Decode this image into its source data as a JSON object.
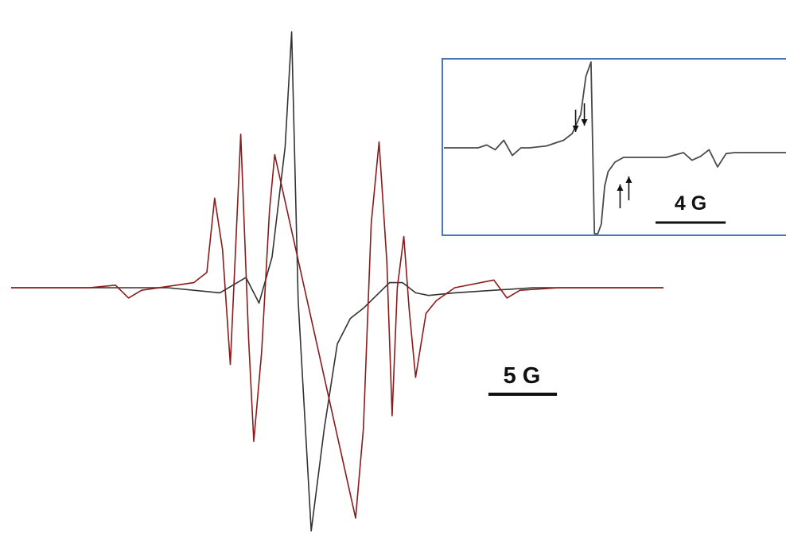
{
  "chart_data": [
    {
      "type": "line",
      "name": "main-spectrum",
      "grid": false,
      "legend": "none",
      "colors": {
        "trace_a": "#8b1a1a",
        "trace_b": "#333333"
      },
      "scale_bar": {
        "label": "5 G",
        "field_span_G": 5
      },
      "field_range_G": [
        0,
        50
      ],
      "amplitude_range": [
        -1.0,
        1.0
      ],
      "series": [
        {
          "color_key": "trace_b",
          "x": [
            0,
            6,
            12,
            16,
            18,
            19,
            20,
            21,
            21.5,
            22,
            23,
            24,
            25,
            26,
            27,
            28,
            29,
            30,
            31,
            32,
            34,
            40,
            50
          ],
          "y": [
            0,
            0,
            0,
            -0.02,
            0.04,
            -0.06,
            0.12,
            0.55,
            1.0,
            -0.05,
            -0.95,
            -0.55,
            -0.22,
            -0.12,
            -0.08,
            -0.03,
            0.02,
            0.02,
            -0.02,
            -0.03,
            -0.02,
            0,
            0
          ]
        },
        {
          "color_key": "trace_a",
          "x": [
            0,
            6,
            8,
            9,
            10,
            14,
            15,
            15.6,
            16.2,
            16.8,
            17.2,
            17.6,
            18.2,
            18.6,
            19.2,
            19.8,
            20.2,
            26.4,
            27.0,
            27.6,
            28.2,
            28.8,
            29.2,
            29.6,
            30.1,
            30.5,
            31.0,
            31.8,
            32.6,
            34,
            37,
            38,
            39,
            42,
            50
          ],
          "y": [
            0,
            0,
            0.01,
            -0.04,
            -0.01,
            0.02,
            0.06,
            0.35,
            0.15,
            -0.3,
            0.15,
            0.6,
            -0.2,
            -0.6,
            -0.25,
            0.3,
            0.52,
            -0.9,
            -0.55,
            0.25,
            0.57,
            0.1,
            -0.5,
            0.0,
            0.2,
            -0.08,
            -0.35,
            -0.1,
            -0.05,
            0.0,
            0.03,
            -0.04,
            -0.01,
            0.0,
            0
          ]
        }
      ]
    },
    {
      "type": "line",
      "name": "inset-spectrum",
      "grid": false,
      "legend": "none",
      "color": "#4a4a4a",
      "frame_color": "#4a77b8",
      "scale_bar": {
        "label": "4 G",
        "field_span_G": 4
      },
      "field_range_G": [
        0,
        40
      ],
      "amplitude_range": [
        -1.0,
        1.0
      ],
      "series": [
        {
          "x": [
            0,
            4,
            5,
            6,
            7,
            8,
            9,
            10,
            12,
            14,
            15,
            16,
            16.6,
            17.2,
            17.6,
            18.0,
            18.4,
            18.8,
            19.2,
            20,
            21,
            22,
            24,
            26,
            28,
            29,
            30,
            31,
            32,
            33,
            34,
            36,
            40
          ],
          "y": [
            0.1,
            0.1,
            0.13,
            0.08,
            0.18,
            0.02,
            0.1,
            0.1,
            0.12,
            0.18,
            0.25,
            0.45,
            0.85,
            1.0,
            -1.0,
            -0.9,
            -0.7,
            -0.3,
            -0.15,
            -0.05,
            0.0,
            0.0,
            0.0,
            0.0,
            0.05,
            -0.03,
            0.01,
            0.08,
            -0.1,
            0.04,
            0.05,
            0.05,
            0.05
          ]
        }
      ],
      "annotations": [
        {
          "type": "arrow",
          "direction": "down",
          "x": 15.4,
          "count": 2
        },
        {
          "type": "arrow",
          "direction": "up",
          "x": 20.6,
          "count": 2
        }
      ]
    }
  ]
}
